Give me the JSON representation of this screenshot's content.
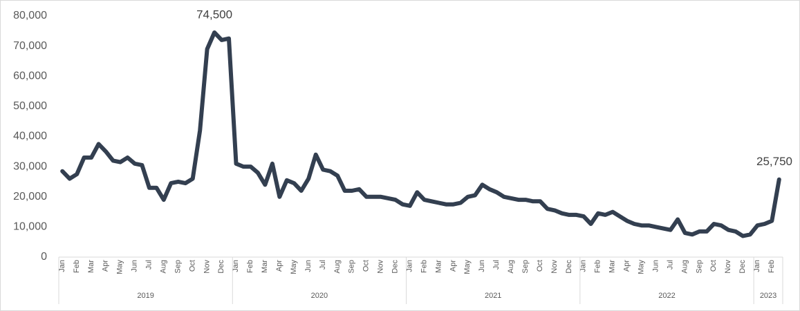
{
  "chart_data": {
    "type": "line",
    "categories": [
      "Jan",
      null,
      "Feb",
      null,
      "Mar",
      null,
      "Apr",
      null,
      "May",
      null,
      "Jun",
      null,
      "Jul",
      null,
      "Aug",
      null,
      "Sep",
      null,
      "Oct",
      null,
      "Nov",
      null,
      "Dec",
      null,
      "Jan",
      null,
      "Feb",
      null,
      "Mar",
      null,
      "Apr",
      null,
      "May",
      null,
      "Jun",
      null,
      "Jul",
      null,
      "Aug",
      null,
      "Sep",
      null,
      "Oct",
      null,
      "Nov",
      null,
      "Dec",
      null,
      "Jan",
      null,
      "Feb",
      null,
      "Mar",
      null,
      "Apr",
      null,
      "May",
      null,
      "Jun",
      null,
      "Jul",
      null,
      "Aug",
      null,
      "Sep",
      null,
      "Oct",
      null,
      "Nov",
      null,
      "Dec",
      null,
      "Jan",
      null,
      "Feb",
      null,
      "Mar",
      null,
      "Apr",
      null,
      "May",
      null,
      "Jun",
      null,
      "Jul",
      null,
      "Aug",
      null,
      "Sep",
      null,
      "Oct",
      null,
      "Nov",
      null,
      "Dec",
      null,
      "Jan",
      null,
      "Feb",
      null
    ],
    "years": [
      "2019",
      "2020",
      "2021",
      "2022",
      "2023"
    ],
    "values": [
      28500,
      26000,
      27500,
      33000,
      33000,
      37500,
      35000,
      32000,
      31500,
      33000,
      31000,
      30500,
      23000,
      23000,
      19000,
      24500,
      25000,
      24500,
      26000,
      42000,
      69000,
      74500,
      72000,
      72500,
      31000,
      30000,
      30000,
      28000,
      24000,
      31000,
      20000,
      25500,
      24500,
      22000,
      26000,
      34000,
      29000,
      28500,
      27000,
      22000,
      22000,
      22500,
      20000,
      20000,
      20000,
      19500,
      19000,
      17500,
      17000,
      21500,
      19000,
      18500,
      18000,
      17500,
      17500,
      18000,
      20000,
      20500,
      24000,
      22500,
      21500,
      20000,
      19500,
      19000,
      19000,
      18500,
      18500,
      16000,
      15500,
      14500,
      14000,
      14000,
      13500,
      11000,
      14500,
      14000,
      15000,
      13500,
      12000,
      11000,
      10500,
      10500,
      10000,
      9500,
      9000,
      12500,
      8000,
      7500,
      8500,
      8500,
      11000,
      10500,
      9000,
      8500,
      7000,
      7500,
      10500,
      11000,
      12000,
      25750
    ],
    "value_labels": [
      null,
      null,
      null,
      null,
      null,
      null,
      null,
      null,
      null,
      null,
      null,
      null,
      null,
      null,
      null,
      null,
      null,
      null,
      null,
      null,
      null,
      "74,500",
      null,
      null,
      null,
      null,
      null,
      null,
      null,
      null,
      null,
      null,
      null,
      null,
      null,
      null,
      null,
      null,
      null,
      null,
      null,
      null,
      null,
      null,
      null,
      null,
      null,
      null,
      null,
      null,
      null,
      null,
      null,
      null,
      null,
      null,
      null,
      null,
      null,
      null,
      null,
      null,
      null,
      null,
      null,
      null,
      null,
      null,
      null,
      null,
      null,
      null,
      null,
      null,
      null,
      null,
      null,
      null,
      null,
      null,
      null,
      null,
      null,
      null,
      null,
      null,
      null,
      null,
      null,
      null,
      null,
      null,
      null,
      null,
      null,
      null,
      null,
      null,
      null,
      "25,750"
    ],
    "color": "#333f50",
    "ylim": [
      0,
      80000
    ],
    "yticks": [
      0,
      {
        "value": 10000,
        "label": "10,000"
      },
      {
        "value": 20000,
        "label": "20,000"
      },
      {
        "value": 30000,
        "label": "30,000"
      },
      {
        "value": 40000,
        "label": "40,000"
      },
      {
        "value": 50000,
        "label": "50,000"
      },
      {
        "value": 60000,
        "label": "60,000"
      },
      {
        "value": 70000,
        "label": "70,000"
      },
      {
        "value": 80000,
        "label": "80,000"
      }
    ],
    "grid": false
  }
}
